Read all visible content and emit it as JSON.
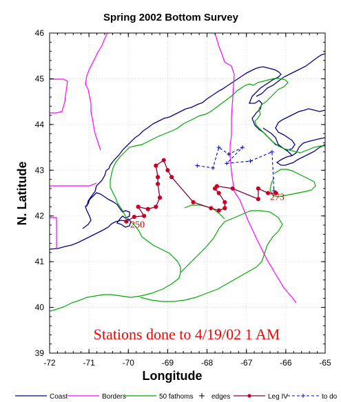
{
  "title": "Spring 2002 Bottom Survey",
  "xlabel": "Longitude",
  "ylabel": "N. Latitude",
  "annotation": "Stations done to 4/19/02 1 AM",
  "station_labels": [
    {
      "text": "250",
      "lon": -69.95,
      "lat": 41.75
    },
    {
      "text": "273",
      "lon": -66.4,
      "lat": 42.35
    }
  ],
  "colors": {
    "coast": "#000080",
    "borders": "#ff00ff",
    "fathoms": "#00aa00",
    "leg": "#800040",
    "leg_marker": "#cc0022",
    "todo": "#0000cc",
    "annotation": "#ff0000"
  },
  "legend": [
    {
      "label": "Coast",
      "style": "coast"
    },
    {
      "label": "Borders",
      "style": "borders"
    },
    {
      "label": "50 fathoms",
      "style": "fathoms"
    },
    {
      "label": "edges",
      "style": "edges"
    },
    {
      "label": "Leg IV",
      "style": "leg"
    },
    {
      "label": "to do",
      "style": "todo"
    }
  ],
  "chart_data": {
    "type": "map",
    "xlim": [
      -72,
      -65
    ],
    "ylim": [
      39,
      46
    ],
    "x_ticks": [
      "-72",
      "-71",
      "-70",
      "-69",
      "-68",
      "-67",
      "-66",
      "-65"
    ],
    "y_ticks": [
      "39",
      "40",
      "41",
      "42",
      "43",
      "44",
      "45",
      "46"
    ],
    "grid": true,
    "legend_position": "bottom",
    "series": [
      {
        "name": "Leg IV",
        "points": [
          [
            -70.05,
            41.88
          ],
          [
            -69.85,
            41.98
          ],
          [
            -69.6,
            42.0
          ],
          [
            -69.75,
            42.2
          ],
          [
            -69.5,
            42.15
          ],
          [
            -69.3,
            42.2
          ],
          [
            -69.2,
            42.4
          ],
          [
            -69.25,
            42.7
          ],
          [
            -69.25,
            42.85
          ],
          [
            -69.3,
            43.1
          ],
          [
            -69.1,
            43.22
          ],
          [
            -69.0,
            43.0
          ],
          [
            -68.9,
            42.85
          ],
          [
            -68.35,
            42.3
          ],
          [
            -67.9,
            42.17
          ],
          [
            -67.7,
            42.12
          ],
          [
            -67.55,
            42.17
          ],
          [
            -67.55,
            42.3
          ],
          [
            -67.7,
            42.5
          ],
          [
            -67.8,
            42.6
          ],
          [
            -67.75,
            42.65
          ],
          [
            -67.35,
            42.6
          ],
          [
            -66.7,
            42.37
          ],
          [
            -66.7,
            42.6
          ],
          [
            -66.45,
            42.5
          ],
          [
            -66.25,
            42.5
          ]
        ]
      },
      {
        "name": "to do",
        "points": [
          [
            -68.25,
            43.1
          ],
          [
            -67.85,
            43.05
          ],
          [
            -67.7,
            43.5
          ],
          [
            -67.45,
            43.35
          ],
          [
            -67.1,
            43.5
          ],
          [
            -67.5,
            43.15
          ],
          [
            -66.9,
            43.2
          ],
          [
            -66.35,
            43.4
          ],
          [
            -66.3,
            42.55
          ]
        ]
      }
    ]
  }
}
